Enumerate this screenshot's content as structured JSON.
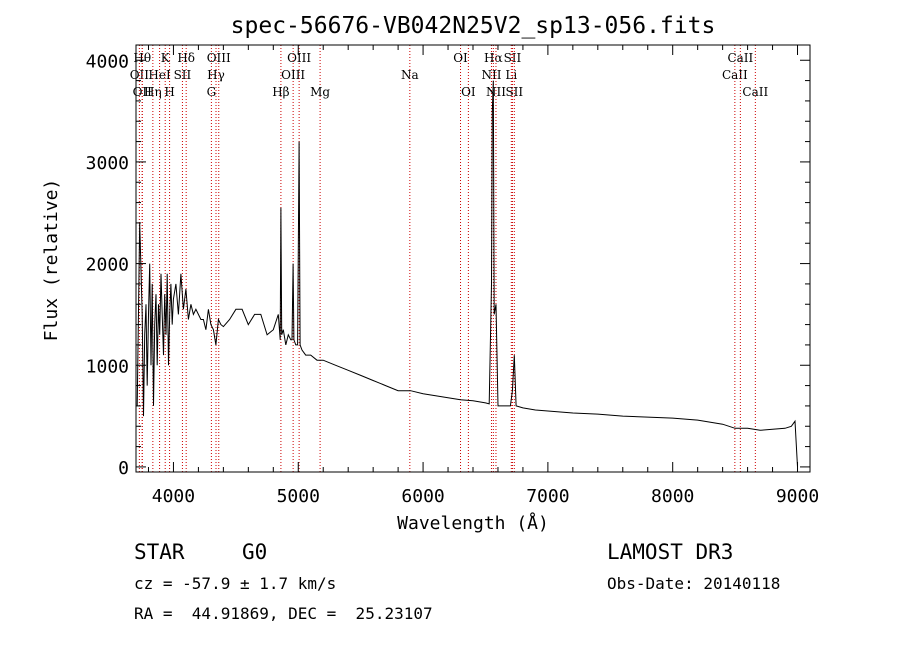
{
  "chart_data": {
    "type": "line",
    "title": "spec-56676-VB042N25V2_sp13-056.fits",
    "xlabel": "Wavelength (Å)",
    "ylabel": "Flux (relative)",
    "xlim": [
      3700,
      9100
    ],
    "ylim": [
      -50,
      4150
    ],
    "xticks": [
      4000,
      5000,
      6000,
      7000,
      8000,
      9000
    ],
    "xtick_labels": [
      "4000",
      "5000",
      "6000",
      "7000",
      "8000",
      "9000"
    ],
    "yticks": [
      0,
      1000,
      2000,
      3000,
      4000
    ],
    "ytick_labels": [
      "0",
      "1000",
      "2000",
      "3000",
      "4000"
    ],
    "line_color": "#000000",
    "marker_color": "#cc0000",
    "spectrum": {
      "x": [
        3710,
        3730,
        3750,
        3760,
        3770,
        3780,
        3790,
        3800,
        3810,
        3820,
        3830,
        3840,
        3850,
        3860,
        3870,
        3880,
        3890,
        3900,
        3910,
        3920,
        3930,
        3940,
        3950,
        3960,
        3970,
        3980,
        3990,
        4000,
        4020,
        4040,
        4060,
        4080,
        4100,
        4120,
        4140,
        4160,
        4180,
        4200,
        4220,
        4240,
        4260,
        4280,
        4300,
        4320,
        4340,
        4360,
        4380,
        4400,
        4450,
        4500,
        4550,
        4600,
        4650,
        4700,
        4750,
        4800,
        4840,
        4855,
        4861,
        4867,
        4880,
        4900,
        4920,
        4940,
        4950,
        4959,
        4965,
        4980,
        4995,
        5007,
        5015,
        5030,
        5060,
        5100,
        5150,
        5200,
        5300,
        5400,
        5500,
        5600,
        5700,
        5800,
        5900,
        6000,
        6100,
        6200,
        6300,
        6400,
        6500,
        6530,
        6548,
        6555,
        6563,
        6570,
        6584,
        6600,
        6650,
        6700,
        6716,
        6731,
        6745,
        6800,
        6900,
        7000,
        7200,
        7400,
        7600,
        7800,
        8000,
        8200,
        8400,
        8500,
        8600,
        8700,
        8800,
        8900,
        8950,
        8980,
        9000
      ],
      "y": [
        600,
        2400,
        1500,
        500,
        1300,
        1600,
        800,
        1500,
        2000,
        1000,
        1800,
        600,
        1400,
        1700,
        1000,
        1600,
        1300,
        1900,
        1500,
        1100,
        1700,
        1300,
        1900,
        1000,
        1500,
        1800,
        1400,
        1650,
        1800,
        1500,
        1900,
        1550,
        1750,
        1450,
        1600,
        1500,
        1550,
        1500,
        1450,
        1450,
        1350,
        1550,
        1400,
        1350,
        1200,
        1450,
        1400,
        1380,
        1450,
        1550,
        1550,
        1400,
        1500,
        1500,
        1300,
        1350,
        1500,
        1250,
        2550,
        1300,
        1350,
        1200,
        1300,
        1250,
        1250,
        2000,
        1250,
        1200,
        1200,
        3200,
        1200,
        1150,
        1100,
        1100,
        1050,
        1050,
        1000,
        950,
        900,
        850,
        800,
        750,
        750,
        720,
        700,
        680,
        660,
        650,
        630,
        620,
        1800,
        3500,
        3800,
        1500,
        1600,
        600,
        600,
        600,
        750,
        1100,
        600,
        580,
        560,
        550,
        530,
        520,
        500,
        490,
        480,
        460,
        420,
        380,
        380,
        360,
        370,
        380,
        400,
        450,
        0
      ]
    },
    "markers": [
      {
        "label": "OII",
        "wave": 3727,
        "row": 2
      },
      {
        "label": "Hθ",
        "wave": 3750,
        "row": 1
      },
      {
        "label": "OII",
        "wave": 3750,
        "row": 3
      },
      {
        "label": "Hη",
        "wave": 3835,
        "row": 3
      },
      {
        "label": "HeI",
        "wave": 3889,
        "row": 2
      },
      {
        "label": "K",
        "wave": 3934,
        "row": 1
      },
      {
        "label": "H",
        "wave": 3969,
        "row": 3
      },
      {
        "label": "SII",
        "wave": 4072,
        "row": 2
      },
      {
        "label": "Hδ",
        "wave": 4102,
        "row": 1
      },
      {
        "label": "G",
        "wave": 4304,
        "row": 3
      },
      {
        "label": "Hγ",
        "wave": 4341,
        "row": 2
      },
      {
        "label": "OIII",
        "wave": 4363,
        "row": 1
      },
      {
        "label": "Hβ",
        "wave": 4861,
        "row": 3
      },
      {
        "label": "OIII",
        "wave": 4959,
        "row": 2
      },
      {
        "label": "OIII",
        "wave": 5007,
        "row": 1
      },
      {
        "label": "Mg",
        "wave": 5175,
        "row": 3
      },
      {
        "label": "Na",
        "wave": 5894,
        "row": 2
      },
      {
        "label": "OI",
        "wave": 6300,
        "row": 1
      },
      {
        "label": "OI",
        "wave": 6363,
        "row": 3
      },
      {
        "label": "NII",
        "wave": 6548,
        "row": 2
      },
      {
        "label": "Hα",
        "wave": 6563,
        "row": 1
      },
      {
        "label": "NII",
        "wave": 6584,
        "row": 3
      },
      {
        "label": "Li",
        "wave": 6707,
        "row": 2
      },
      {
        "label": "SII",
        "wave": 6716,
        "row": 1
      },
      {
        "label": "SII",
        "wave": 6731,
        "row": 3
      },
      {
        "label": "CaII",
        "wave": 8498,
        "row": 2
      },
      {
        "label": "CaII",
        "wave": 8542,
        "row": 1
      },
      {
        "label": "CaII",
        "wave": 8662,
        "row": 3
      }
    ]
  },
  "info": {
    "object_class": "STAR",
    "subclass": "G0",
    "survey": "LAMOST DR3",
    "velocity": "cz = -57.9 ± 1.7 km/s",
    "obs_date": "Obs-Date: 20140118",
    "coords": "RA =  44.91869, DEC =  25.23107"
  }
}
